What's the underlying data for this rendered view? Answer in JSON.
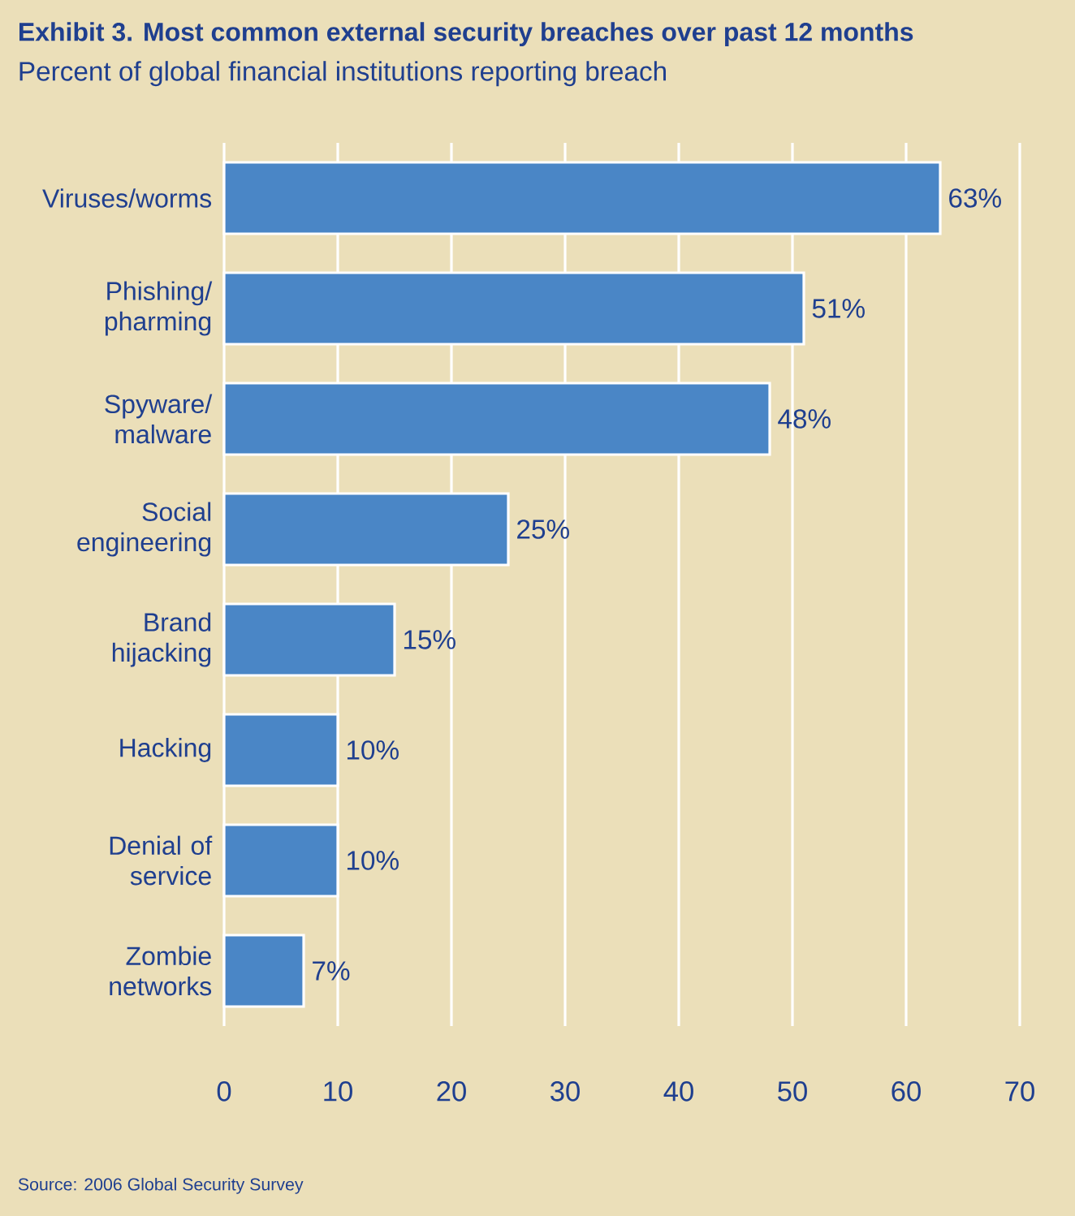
{
  "chart_data": {
    "type": "bar",
    "orientation": "horizontal",
    "title": "Exhibit 3. Most common external security breaches over past 12 months",
    "subtitle": "Percent of global financial institutions reporting breach",
    "categories": [
      "Viruses/worms",
      "Phishing/ pharming",
      "Spyware/ malware",
      "Social engineering",
      "Brand hijacking",
      "Hacking",
      "Denial of service",
      "Zombie networks"
    ],
    "values": [
      63,
      51,
      48,
      25,
      15,
      10,
      10,
      7
    ],
    "value_labels": [
      "63%",
      "51%",
      "48%",
      "25%",
      "15%",
      "10%",
      "10%",
      "7%"
    ],
    "color": "#4a86c6",
    "xlim": [
      0,
      70
    ],
    "xticks": [
      0,
      10,
      20,
      30,
      40,
      50,
      60,
      70
    ],
    "grid": "x",
    "annotations": [
      "Source: 2006 Global Security Survey"
    ]
  }
}
